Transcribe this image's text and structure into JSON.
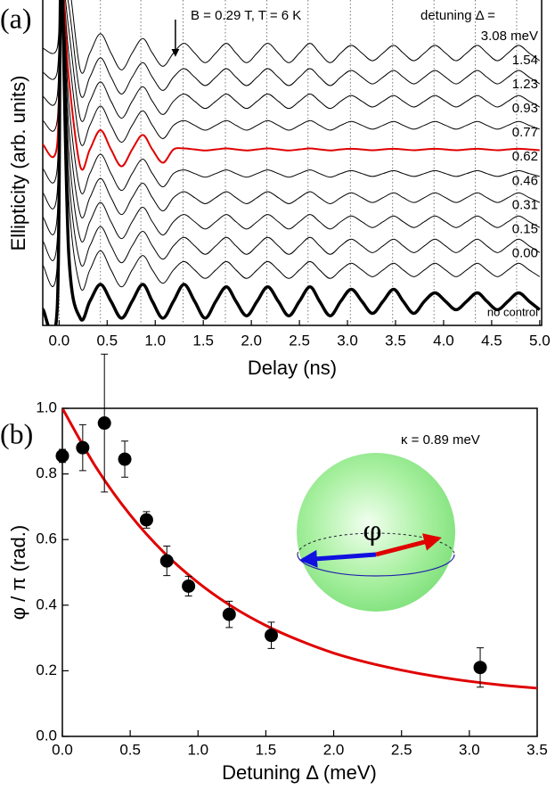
{
  "chart_data": [
    {
      "type": "line",
      "panel_label": "(a)",
      "x_label": "Delay (ns)",
      "y_label": "Ellipticity (arb. units)",
      "annotations": [
        "B = 0.29 T, T = 6 K",
        "detuning Δ ="
      ],
      "xlim": [
        -0.17,
        5.02
      ],
      "ylim": [
        0,
        13.5
      ],
      "xticks": [
        {
          "value": 0,
          "label": "0.0"
        },
        0.5,
        {
          "value": 1,
          "label": "1.0"
        },
        1.5,
        {
          "value": 2,
          "label": "2.0"
        },
        2.5,
        {
          "value": 3,
          "label": "3.0"
        },
        3.5,
        {
          "value": 4,
          "label": "4.0"
        },
        4.5,
        {
          "value": 5,
          "label": "5.0"
        }
      ],
      "vlines": [
        0,
        0.43,
        0.85,
        1.29,
        1.73,
        2.16,
        2.59,
        3.03,
        3.47,
        3.9,
        4.33,
        4.76
      ],
      "arrow_x": 1.21,
      "x": [
        -0.17,
        -0.02,
        0.02,
        0.1,
        0.22,
        0.32,
        0.43,
        0.54,
        0.65,
        0.76,
        0.87,
        0.97,
        1.08,
        1.19,
        1.3,
        1.41,
        1.52,
        1.63,
        1.74,
        1.84,
        1.95,
        2.06,
        2.17,
        2.28,
        2.39,
        2.5,
        2.61,
        2.71,
        2.82,
        2.93,
        3.04,
        3.15,
        3.26,
        3.37,
        3.48,
        3.58,
        3.69,
        3.8,
        3.91,
        4.02,
        4.13,
        4.24,
        4.35,
        4.45,
        4.56,
        4.67,
        4.78,
        4.89,
        5.0
      ],
      "series": [
        {
          "name": "3.08 meV",
          "color": "#000000",
          "line_width": 1,
          "values": [
            11.5,
            11.5,
            14.5,
            14.3,
            10.6,
            11.3,
            12.1,
            11.3,
            10.6,
            11.3,
            11.9,
            11.3,
            10.75,
            11.3,
            11.7,
            11.3,
            10.9,
            11.3,
            11.7,
            11.3,
            10.9,
            11.3,
            11.7,
            11.3,
            10.9,
            11.3,
            11.7,
            11.3,
            10.9,
            11.3,
            11.62,
            11.3,
            10.98,
            11.3,
            11.62,
            11.3,
            10.98,
            11.3,
            11.62,
            11.3,
            10.98,
            11.3,
            11.62,
            11.3,
            10.98,
            11.3,
            11.62,
            11.3,
            10.98
          ]
        },
        {
          "name": "1.54",
          "color": "#000000",
          "line_width": 1,
          "values": [
            10.5,
            10.5,
            14.5,
            13.3,
            9.6,
            10.3,
            11.1,
            10.3,
            9.6,
            10.3,
            10.9,
            10.3,
            9.75,
            10.3,
            10.65,
            10.3,
            9.95,
            10.3,
            10.65,
            10.3,
            9.95,
            10.3,
            10.65,
            10.3,
            9.95,
            10.3,
            10.65,
            10.3,
            9.95,
            10.3,
            10.58,
            10.3,
            10.02,
            10.3,
            10.58,
            10.3,
            10.02,
            10.3,
            10.58,
            10.3,
            10.02,
            10.3,
            10.58,
            10.3,
            10.02,
            10.3,
            10.58,
            10.3,
            10.02
          ]
        },
        {
          "name": "1.23",
          "color": "#000000",
          "line_width": 1,
          "values": [
            9.5,
            9.5,
            14.5,
            12.3,
            8.6,
            9.3,
            10.1,
            9.3,
            8.6,
            9.3,
            9.9,
            9.3,
            8.75,
            9.3,
            9.6,
            9.3,
            9.0,
            9.3,
            9.6,
            9.3,
            9.0,
            9.3,
            9.6,
            9.3,
            9.0,
            9.3,
            9.6,
            9.3,
            9.0,
            9.3,
            9.54,
            9.3,
            9.06,
            9.3,
            9.54,
            9.3,
            9.06,
            9.3,
            9.54,
            9.3,
            9.06,
            9.3,
            9.54,
            9.3,
            9.06,
            9.3,
            9.54,
            9.3,
            9.06
          ]
        },
        {
          "name": "0.93",
          "color": "#000000",
          "line_width": 1,
          "values": [
            8.5,
            8.5,
            14.5,
            11.3,
            7.6,
            8.3,
            9.1,
            8.3,
            7.6,
            8.3,
            8.9,
            8.3,
            7.75,
            8.3,
            8.5,
            8.3,
            8.1,
            8.3,
            8.5,
            8.3,
            8.1,
            8.3,
            8.5,
            8.3,
            8.1,
            8.3,
            8.5,
            8.3,
            8.1,
            8.3,
            8.46,
            8.3,
            8.14,
            8.3,
            8.46,
            8.3,
            8.14,
            8.3,
            8.46,
            8.3,
            8.14,
            8.3,
            8.46,
            8.3,
            8.14,
            8.3,
            8.46,
            8.3,
            8.14
          ]
        },
        {
          "name": "0.77",
          "color": "#e00000",
          "line_width": 2,
          "values": [
            7.5,
            7.5,
            14.5,
            10.3,
            6.6,
            7.3,
            8.1,
            7.3,
            6.6,
            7.3,
            7.9,
            7.3,
            6.75,
            7.3,
            7.34,
            7.3,
            7.26,
            7.3,
            7.34,
            7.3,
            7.26,
            7.3,
            7.34,
            7.3,
            7.26,
            7.3,
            7.34,
            7.3,
            7.26,
            7.3,
            7.33,
            7.3,
            7.27,
            7.3,
            7.33,
            7.3,
            7.27,
            7.3,
            7.33,
            7.3,
            7.27,
            7.3,
            7.33,
            7.3,
            7.27,
            7.3,
            7.33,
            7.3,
            7.27
          ]
        },
        {
          "name": "0.62",
          "color": "#000000",
          "line_width": 1,
          "values": [
            6.5,
            6.5,
            14.5,
            9.3,
            5.6,
            6.3,
            7.1,
            6.3,
            5.6,
            6.3,
            6.9,
            6.3,
            5.75,
            6.3,
            6.45,
            6.3,
            6.15,
            6.3,
            6.45,
            6.3,
            6.15,
            6.3,
            6.45,
            6.3,
            6.15,
            6.3,
            6.45,
            6.3,
            6.15,
            6.3,
            6.42,
            6.3,
            6.18,
            6.3,
            6.42,
            6.3,
            6.18,
            6.3,
            6.42,
            6.3,
            6.18,
            6.3,
            6.42,
            6.3,
            6.18,
            6.3,
            6.42,
            6.3,
            6.18
          ]
        },
        {
          "name": "0.46",
          "color": "#000000",
          "line_width": 1,
          "values": [
            5.5,
            5.5,
            14.5,
            8.3,
            4.6,
            5.3,
            6.1,
            5.3,
            4.6,
            5.3,
            5.9,
            5.3,
            4.75,
            5.3,
            5.55,
            5.3,
            5.05,
            5.3,
            5.55,
            5.3,
            5.05,
            5.3,
            5.55,
            5.3,
            5.05,
            5.3,
            5.55,
            5.3,
            5.05,
            5.3,
            5.5,
            5.3,
            5.1,
            5.3,
            5.5,
            5.3,
            5.1,
            5.3,
            5.5,
            5.3,
            5.1,
            5.3,
            5.5,
            5.3,
            5.1,
            5.3,
            5.5,
            5.3,
            5.1
          ]
        },
        {
          "name": "0.31",
          "color": "#000000",
          "line_width": 1,
          "values": [
            4.5,
            4.5,
            14.5,
            7.3,
            3.6,
            4.3,
            5.1,
            4.3,
            3.6,
            4.3,
            4.9,
            4.3,
            3.75,
            4.3,
            4.6,
            4.3,
            4.0,
            4.3,
            4.6,
            4.3,
            4.0,
            4.3,
            4.6,
            4.3,
            4.0,
            4.3,
            4.6,
            4.3,
            4.0,
            4.3,
            4.54,
            4.3,
            4.06,
            4.3,
            4.54,
            4.3,
            4.06,
            4.3,
            4.54,
            4.3,
            4.06,
            4.3,
            4.54,
            4.3,
            4.06,
            4.3,
            4.54,
            4.3,
            4.06
          ]
        },
        {
          "name": "0.15",
          "color": "#000000",
          "line_width": 1,
          "values": [
            3.5,
            3.5,
            14.5,
            6.3,
            2.6,
            3.3,
            4.1,
            3.3,
            2.6,
            3.3,
            3.9,
            3.3,
            2.75,
            3.3,
            3.65,
            3.3,
            2.95,
            3.3,
            3.65,
            3.3,
            2.95,
            3.3,
            3.65,
            3.3,
            2.95,
            3.3,
            3.65,
            3.3,
            2.95,
            3.3,
            3.58,
            3.3,
            3.02,
            3.3,
            3.58,
            3.3,
            3.02,
            3.3,
            3.58,
            3.3,
            3.02,
            3.3,
            3.58,
            3.3,
            3.02,
            3.3,
            3.58,
            3.3,
            3.02
          ]
        },
        {
          "name": "0.00",
          "color": "#000000",
          "line_width": 1,
          "values": [
            2.5,
            2.5,
            14.5,
            5.3,
            1.6,
            2.3,
            3.1,
            2.3,
            1.6,
            2.3,
            2.9,
            2.3,
            1.75,
            2.3,
            2.65,
            2.3,
            1.95,
            2.3,
            2.65,
            2.3,
            1.95,
            2.3,
            2.65,
            2.3,
            1.95,
            2.3,
            2.65,
            2.3,
            1.95,
            2.3,
            2.58,
            2.3,
            2.02,
            2.3,
            2.58,
            2.3,
            2.02,
            2.3,
            2.58,
            2.3,
            2.02,
            2.3,
            2.58,
            2.3,
            2.02,
            2.3,
            2.58,
            2.3,
            2.02
          ]
        },
        {
          "name": "no control",
          "color": "#000000",
          "line_width": 3.5,
          "values": [
            0.67,
            0.67,
            14.5,
            3,
            0.3,
            1.0,
            1.7,
            1.0,
            0.3,
            1.0,
            1.7,
            1.0,
            0.3,
            1.0,
            1.7,
            1.0,
            0.3,
            1.0,
            1.6,
            1.0,
            0.4,
            1.0,
            1.6,
            1.0,
            0.4,
            1.0,
            1.6,
            1.0,
            0.4,
            1.0,
            1.5,
            1.0,
            0.5,
            1.0,
            1.5,
            1.0,
            0.5,
            1.0,
            1.35,
            1.0,
            0.65,
            1.0,
            1.35,
            1.0,
            0.65,
            1.0,
            1.35,
            1.0,
            0.65
          ]
        }
      ]
    },
    {
      "type": "scatter",
      "panel_label": "(b)",
      "x_label": "Detuning Δ (meV)",
      "y_label": "φ / π (rad.)",
      "annotations": [
        "κ = 0.89 meV"
      ],
      "inset_label": "φ",
      "xlim": [
        0,
        3.5
      ],
      "ylim": [
        0,
        1.0
      ],
      "xticks": [
        {
          "value": 0,
          "label": "0.0"
        },
        0.5,
        {
          "value": 1,
          "label": "1.0"
        },
        1.5,
        {
          "value": 2,
          "label": "2.0"
        },
        2.5,
        {
          "value": 3,
          "label": "3.0"
        },
        3.5
      ],
      "yticks": [
        {
          "value": 0,
          "label": "0.0"
        },
        0.2,
        0.4,
        0.6,
        0.8,
        {
          "value": 1,
          "label": "1.0"
        }
      ],
      "points": {
        "color": "#000000",
        "x": [
          0.0,
          0.15,
          0.31,
          0.46,
          0.62,
          0.77,
          0.93,
          1.23,
          1.54,
          3.08
        ],
        "values": [
          0.855,
          0.88,
          0.955,
          0.845,
          0.66,
          0.535,
          0.458,
          0.372,
          0.308,
          0.21
        ],
        "errors": [
          0.02,
          0.07,
          0.21,
          0.055,
          0.025,
          0.045,
          0.03,
          0.04,
          0.04,
          0.06
        ]
      },
      "fit": {
        "color": "#e00000",
        "x": [
          0,
          0.25,
          0.5,
          0.75,
          1.0,
          1.25,
          1.5,
          1.75,
          2.0,
          2.25,
          2.5,
          2.75,
          3.0,
          3.25,
          3.5
        ],
        "values": [
          1.0,
          0.819,
          0.675,
          0.56,
          0.469,
          0.396,
          0.338,
          0.292,
          0.254,
          0.225,
          0.202,
          0.183,
          0.168,
          0.156,
          0.147
        ]
      }
    }
  ]
}
